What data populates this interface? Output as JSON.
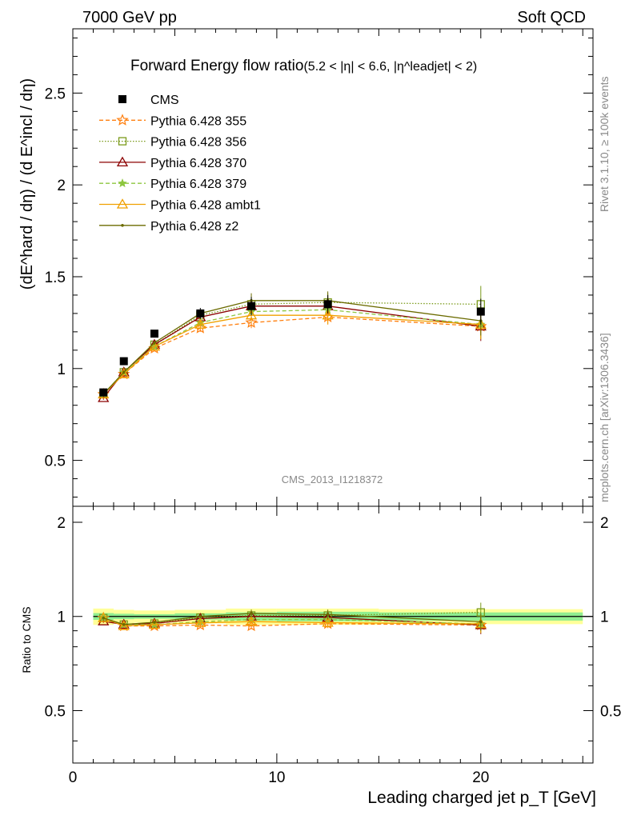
{
  "header": {
    "left": "7000 GeV pp",
    "right": "Soft QCD"
  },
  "side_text": {
    "top": "Rivet 3.1.10, ≥ 100k events",
    "bottom": "mcplots.cern.ch [arXiv:1306.3436]"
  },
  "watermark": "CMS_2013_I1218372",
  "chart_data": {
    "type": "line",
    "title": "Forward Energy flow ratio",
    "title_cut": "(5.2 < |η| < 6.6, |η^leadjet| < 2)",
    "xlabel": "Leading charged jet p_T [GeV]",
    "ylabel": "(dE^hard / dη) / (d E^incl / dη)",
    "ratio_ylabel": "Ratio to CMS",
    "xlim": [
      0,
      25.5
    ],
    "ylim": [
      0.25,
      2.85
    ],
    "ratio_ylim": [
      0.34,
      2.25
    ],
    "x_ticks": [
      0,
      10,
      20
    ],
    "y_ticks": [
      "0.5",
      "1",
      "1.5",
      "2",
      "2.5"
    ],
    "ratio_y_ticks": [
      "0.5",
      "1",
      "2"
    ],
    "x": [
      1.5,
      2.5,
      4.0,
      6.25,
      8.75,
      12.5,
      20.0
    ],
    "x_err": [
      0.5,
      0.5,
      1.0,
      1.25,
      1.25,
      2.5,
      5.0
    ],
    "data": {
      "name": "CMS",
      "color": "#000000",
      "values": [
        0.87,
        1.04,
        1.19,
        1.3,
        1.34,
        1.35,
        1.31
      ],
      "err": [
        0.02,
        0.02,
        0.02,
        0.03,
        0.05,
        0.05,
        0.07
      ]
    },
    "series": [
      {
        "name": "Pythia 6.428 355",
        "color": "#ff7f0e",
        "dash": "5,3",
        "marker": "star-open",
        "values": [
          0.86,
          0.97,
          1.11,
          1.22,
          1.25,
          1.28,
          1.23
        ],
        "err": [
          0.01,
          0.01,
          0.01,
          0.02,
          0.03,
          0.04,
          0.07
        ]
      },
      {
        "name": "Pythia 6.428 356",
        "color": "#7a9a1a",
        "dash": "1.5,2",
        "marker": "square-open",
        "values": [
          0.86,
          0.98,
          1.13,
          1.29,
          1.35,
          1.36,
          1.35
        ],
        "err": [
          0.01,
          0.01,
          0.01,
          0.02,
          0.04,
          0.05,
          0.1
        ]
      },
      {
        "name": "Pythia 6.428 370",
        "color": "#8b0000",
        "dash": "",
        "marker": "triangle-open",
        "values": [
          0.84,
          0.98,
          1.13,
          1.28,
          1.34,
          1.34,
          1.23
        ],
        "err": [
          0.01,
          0.01,
          0.01,
          0.02,
          0.04,
          0.05,
          0.08
        ]
      },
      {
        "name": "Pythia 6.428 379",
        "color": "#8dc63f",
        "dash": "5,3",
        "marker": "star-filled",
        "values": [
          0.86,
          0.98,
          1.12,
          1.25,
          1.31,
          1.32,
          1.24
        ],
        "err": [
          0.01,
          0.01,
          0.01,
          0.02,
          0.04,
          0.05,
          0.08
        ]
      },
      {
        "name": "Pythia 6.428 ambt1",
        "color": "#f0a000",
        "dash": "",
        "marker": "triangle-open",
        "values": [
          0.86,
          0.97,
          1.12,
          1.24,
          1.29,
          1.29,
          1.24
        ],
        "err": [
          0.01,
          0.01,
          0.01,
          0.02,
          0.04,
          0.05,
          0.08
        ]
      },
      {
        "name": "Pythia 6.428 z2",
        "color": "#6b6b00",
        "dash": "",
        "marker": "dot",
        "values": [
          0.86,
          0.98,
          1.14,
          1.3,
          1.37,
          1.37,
          1.26
        ],
        "err": [
          0.01,
          0.01,
          0.01,
          0.02,
          0.04,
          0.05,
          0.08
        ]
      }
    ],
    "ratio_band": {
      "inner_color": "#90ee90",
      "outer_color": "#ffff99",
      "inner": [
        0.025,
        0.02,
        0.017,
        0.023,
        0.03,
        0.035,
        0.03
      ],
      "outer": [
        0.06,
        0.05,
        0.045,
        0.05,
        0.06,
        0.06,
        0.055
      ]
    },
    "legend_position": "top-left"
  }
}
